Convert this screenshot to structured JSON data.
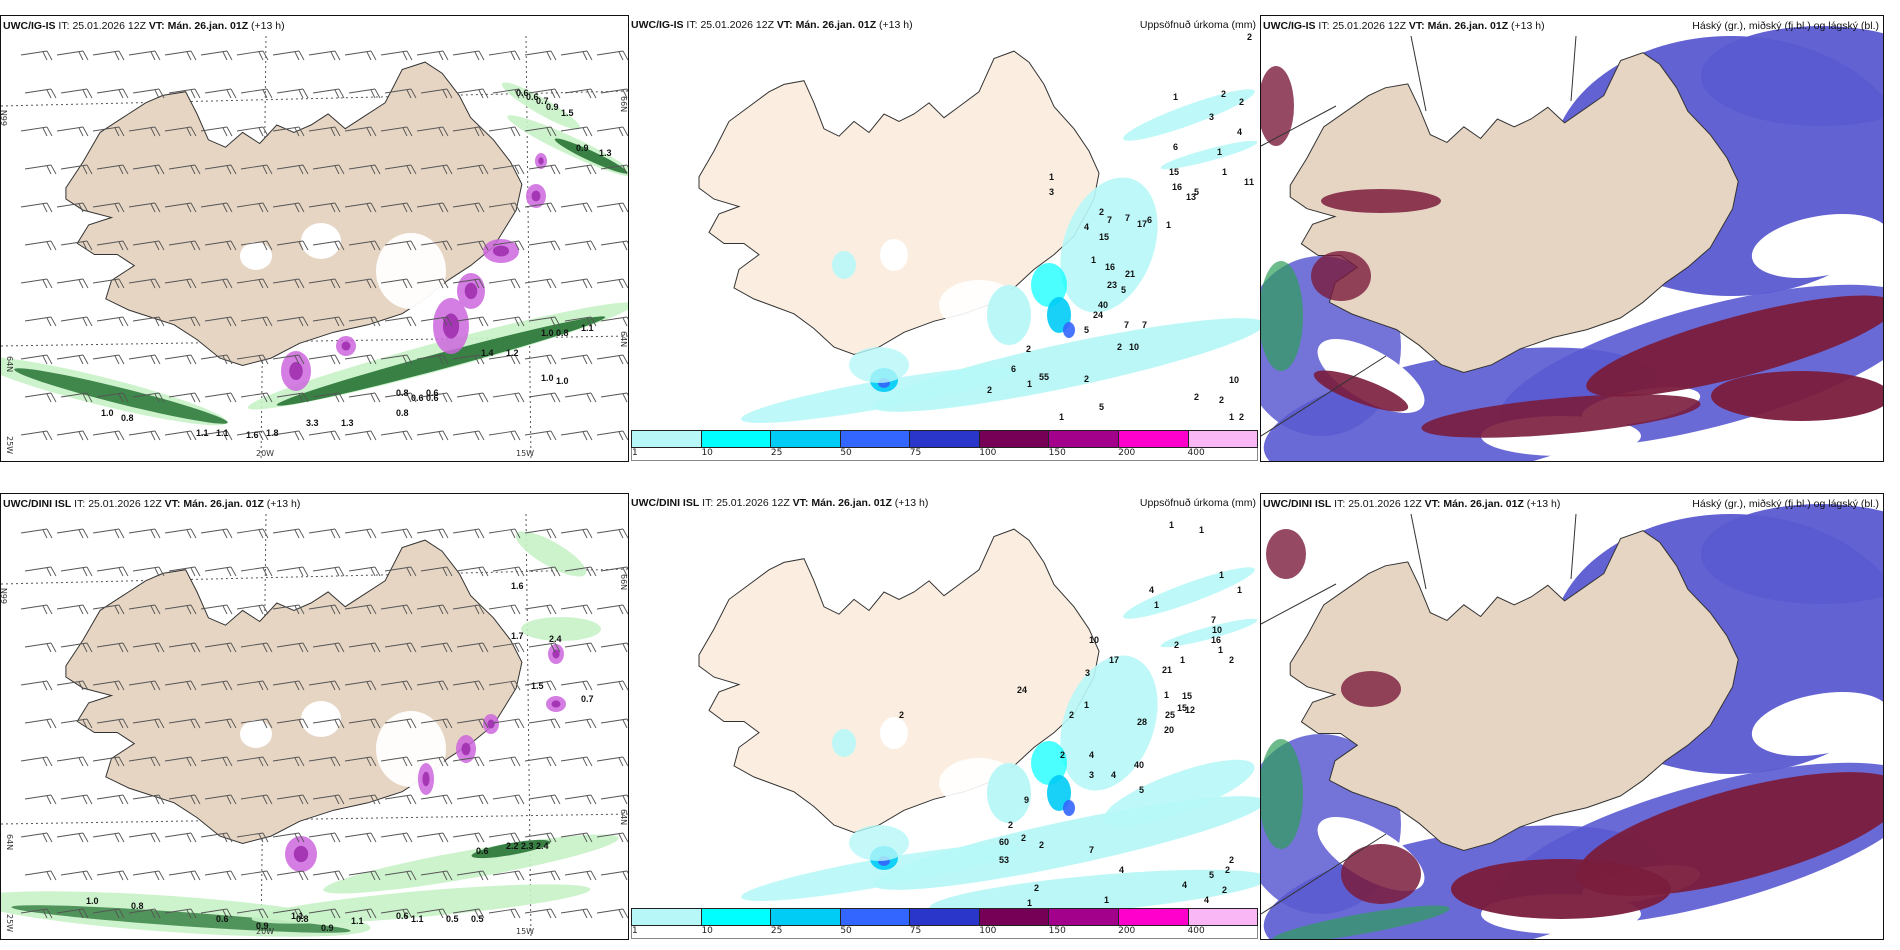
{
  "panels": [
    {
      "id": "top-left",
      "model": "UWC/IG-IS",
      "it_label": "IT:",
      "it_value": "25.01.2026 12Z",
      "vt_label": "VT:",
      "vt_value": "Mán. 26.jan. 01Z",
      "lead": "(+13 h)",
      "product": "",
      "axis_labels": [
        "66N",
        "64N",
        "25W",
        "20W",
        "15W",
        "66N",
        "64N"
      ],
      "value_labels": [
        "0.6",
        "0.6",
        "0.7",
        "0.9",
        "1.5",
        "0.9",
        "1.3",
        "1.0",
        "0.8",
        "1.1",
        "1.4",
        "1.2",
        "0.8",
        "0.6",
        "0.6",
        "0.6",
        "1.0",
        "1.0",
        "1.1",
        "1.1",
        "1.6",
        "1.8",
        "1.0",
        "0.8",
        "0.8",
        "1.3",
        "3.3"
      ]
    },
    {
      "id": "top-middle",
      "model": "UWC/IG-IS",
      "it_label": "IT:",
      "it_value": "25.01.2026 12Z",
      "vt_label": "VT:",
      "vt_value": "Mán. 26.jan. 01Z",
      "lead": "(+13 h)",
      "product": "Uppsöfnuð úrkoma (mm)",
      "value_labels": [
        "2",
        "2",
        "2",
        "3",
        "4",
        "1",
        "6",
        "1",
        "15",
        "1",
        "1",
        "5",
        "1",
        "16",
        "13",
        "1",
        "3",
        "2",
        "7",
        "7",
        "6",
        "17",
        "1",
        "4",
        "15",
        "1",
        "16",
        "21",
        "23",
        "5",
        "40",
        "24",
        "7",
        "7",
        "5",
        "10",
        "2",
        "2",
        "6",
        "55",
        "2",
        "1",
        "2",
        "10",
        "5",
        "1",
        "1",
        "2",
        "2",
        "2"
      ]
    },
    {
      "id": "top-right",
      "model": "UWC/IG-IS",
      "it_label": "IT:",
      "it_value": "25.01.2026 12Z",
      "vt_label": "VT:",
      "vt_value": "Mán. 26.jan. 01Z",
      "lead": "(+13 h)",
      "product": "Háský (gr.), miðský (fj.bl.) og lágský (bl.)"
    },
    {
      "id": "bottom-left",
      "model": "UWC/DINI ISL",
      "it_label": "IT:",
      "it_value": "25.01.2026 12Z",
      "vt_label": "VT:",
      "vt_value": "Mán. 26.jan. 01Z",
      "lead": "(+13 h)",
      "product": "",
      "axis_labels": [
        "66N",
        "64N",
        "25W",
        "20W",
        "15W",
        "66N",
        "64N"
      ],
      "value_labels": [
        "1.6",
        "1.7",
        "2.4",
        "1.5",
        "0.7",
        "0.6",
        "2.2",
        "2.3",
        "2.4",
        "1.0",
        "0.8",
        "0.6",
        "1.1",
        "0.9",
        "0.8",
        "1.1",
        "0.6",
        "1.1",
        "0.5",
        "0.5",
        "0.9"
      ]
    },
    {
      "id": "bottom-middle",
      "model": "UWC/DINI ISL",
      "it_label": "IT:",
      "it_value": "25.01.2026 12Z",
      "vt_label": "VT:",
      "vt_value": "Mán. 26.jan. 01Z",
      "lead": "(+13 h)",
      "product": "Uppsöfnuð úrkoma (mm)",
      "value_labels": [
        "1",
        "1",
        "1",
        "1",
        "4",
        "7",
        "1",
        "10",
        "16",
        "2",
        "1",
        "1",
        "2",
        "10",
        "17",
        "21",
        "3",
        "1",
        "15",
        "12",
        "15",
        "25",
        "28",
        "20",
        "4",
        "2",
        "1",
        "2",
        "2",
        "24",
        "40",
        "3",
        "4",
        "5",
        "9",
        "2",
        "60",
        "53",
        "2",
        "2",
        "7",
        "4",
        "2",
        "5",
        "2",
        "4",
        "1",
        "2",
        "1",
        "4",
        "2",
        "4"
      ]
    },
    {
      "id": "bottom-right",
      "model": "UWC/DINI ISL",
      "it_label": "IT:",
      "it_value": "25.01.2026 12Z",
      "vt_label": "VT:",
      "vt_value": "Mán. 26.jan. 01Z",
      "lead": "(+13 h)",
      "product": "Háský (gr.), miðský (fj.bl.) og lágský (bl.)"
    }
  ],
  "precip_legend": {
    "ticks": [
      "1",
      "10",
      "25",
      "50",
      "75",
      "100",
      "150",
      "200",
      "400"
    ],
    "colors": [
      "#b7f7f7",
      "#00ffff",
      "#00ccf5",
      "#3366ff",
      "#2a35c9",
      "#750055",
      "#a3008c",
      "#ff00cc",
      "#f9b8f5"
    ]
  },
  "colors": {
    "land": "#e6d5c3",
    "land_precip": "#fbeee0",
    "green_light": "#c8f2c8",
    "green_mid": "#5fbf6a",
    "green_dark": "#1d6b2b",
    "purple": "#cc66dd",
    "high_cloud": "#2f9e5a",
    "mid_cloud": "#5a5ad1",
    "low_cloud": "#7a1c3c"
  }
}
